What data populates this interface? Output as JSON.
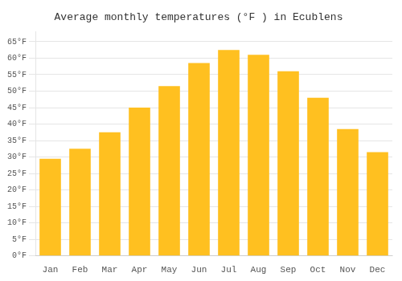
{
  "chart_data": {
    "type": "bar",
    "title": "Average monthly temperatures (°F ) in Ecublens",
    "categories": [
      "Jan",
      "Feb",
      "Mar",
      "Apr",
      "May",
      "Jun",
      "Jul",
      "Aug",
      "Sep",
      "Oct",
      "Nov",
      "Dec"
    ],
    "values": [
      29.5,
      32.5,
      37.5,
      45.0,
      51.5,
      58.5,
      62.5,
      61.0,
      56.0,
      48.0,
      38.5,
      31.5
    ],
    "color": "#FFC020",
    "ylim": [
      0,
      68
    ],
    "yticks": [
      {
        "value": 0,
        "label": "0°F"
      },
      {
        "value": 5,
        "label": "5°F"
      },
      {
        "value": 10,
        "label": "10°F"
      },
      {
        "value": 15,
        "label": "15°F"
      },
      {
        "value": 20,
        "label": "20°F"
      },
      {
        "value": 25,
        "label": "25°F"
      },
      {
        "value": 30,
        "label": "30°F"
      },
      {
        "value": 35,
        "label": "35°F"
      },
      {
        "value": 40,
        "label": "40°F"
      },
      {
        "value": 45,
        "label": "45°F"
      },
      {
        "value": 50,
        "label": "50°F"
      },
      {
        "value": 55,
        "label": "55°F"
      },
      {
        "value": 60,
        "label": "60°F"
      },
      {
        "value": 65,
        "label": "65°F"
      }
    ],
    "grid": true
  }
}
